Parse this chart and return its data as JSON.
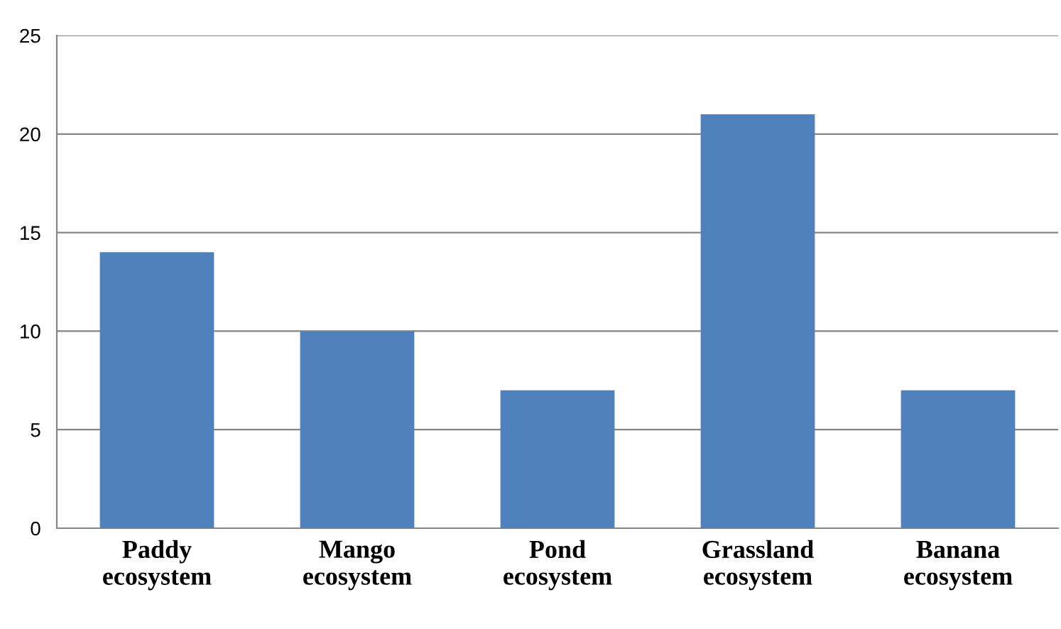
{
  "chart_data": {
    "type": "bar",
    "categories": [
      "Paddy\necosystem",
      "Mango\necosystem",
      "Pond\necosystem",
      "Grassland\necosystem",
      "Banana\necosystem"
    ],
    "values": [
      14,
      10,
      7,
      21,
      7
    ],
    "color": "#4f81bd",
    "ylim": [
      0,
      25
    ],
    "yticks": [
      0,
      5,
      10,
      15,
      20,
      25
    ],
    "grid": "y",
    "legend": false
  }
}
